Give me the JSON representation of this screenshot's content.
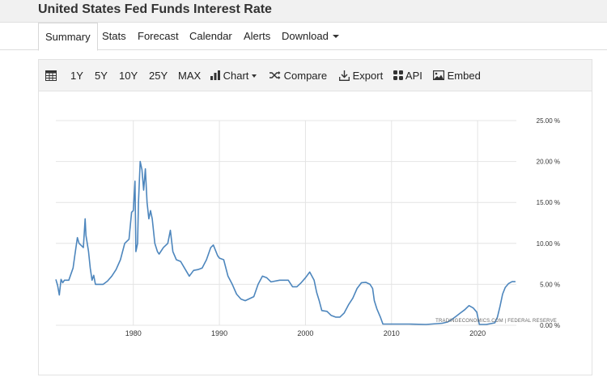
{
  "header": {
    "title": "United States Fed Funds Interest Rate"
  },
  "nav": {
    "tabs": [
      "Summary",
      "Stats",
      "Forecast",
      "Calendar",
      "Alerts",
      "Download"
    ],
    "active": "Summary"
  },
  "toolbar": {
    "ranges": [
      "1Y",
      "5Y",
      "10Y",
      "25Y",
      "MAX"
    ],
    "chart_label": "Chart",
    "compare_label": "Compare",
    "export_label": "Export",
    "api_label": "API",
    "embed_label": "Embed"
  },
  "colors": {
    "line": "#4d86bd",
    "grid": "#e4e4e4"
  },
  "chart_data": {
    "type": "line",
    "title": "",
    "xlabel": "",
    "ylabel": "",
    "xlim": [
      1971,
      2024.5
    ],
    "ylim": [
      0,
      25
    ],
    "y_ticks": [
      0,
      5,
      10,
      15,
      20,
      25
    ],
    "y_tick_labels": [
      "0.00 %",
      "5.00 %",
      "10.00 %",
      "15.00 %",
      "20.00 %",
      "25.00 %"
    ],
    "x_ticks": [
      1980,
      1990,
      2000,
      2010,
      2020
    ],
    "x_tick_labels": [
      "1980",
      "1990",
      "2000",
      "2010",
      "2020"
    ],
    "grid": true,
    "source": "TRADINGECONOMICS.COM  |  FEDERAL RESERVE",
    "series": [
      {
        "x": [
          1971.0,
          1971.2,
          1971.4,
          1971.6,
          1971.8,
          1972.0,
          1972.5,
          1973.0,
          1973.2,
          1973.5,
          1973.7,
          1973.9,
          1974.2,
          1974.4,
          1974.5,
          1974.8,
          1975.0,
          1975.2,
          1975.4,
          1975.6,
          1976.0,
          1976.5,
          1977.0,
          1977.5,
          1978.0,
          1978.5,
          1979.0,
          1979.5,
          1979.8,
          1980.0,
          1980.2,
          1980.3,
          1980.5,
          1980.6,
          1980.8,
          1981.0,
          1981.2,
          1981.4,
          1981.6,
          1981.8,
          1982.0,
          1982.2,
          1982.5,
          1982.8,
          1983.0,
          1983.5,
          1984.0,
          1984.3,
          1984.6,
          1985.0,
          1985.5,
          1986.0,
          1986.5,
          1987.0,
          1987.5,
          1988.0,
          1988.5,
          1989.0,
          1989.3,
          1989.8,
          1990.0,
          1990.5,
          1991.0,
          1991.5,
          1992.0,
          1992.5,
          1993.0,
          1994.0,
          1994.5,
          1995.0,
          1995.5,
          1996.0,
          1997.0,
          1998.0,
          1998.5,
          1999.0,
          1999.5,
          2000.0,
          2000.5,
          2001.0,
          2001.3,
          2001.6,
          2001.9,
          2002.5,
          2003.0,
          2003.5,
          2004.0,
          2004.5,
          2005.0,
          2005.5,
          2006.0,
          2006.5,
          2007.0,
          2007.5,
          2007.8,
          2008.0,
          2008.3,
          2008.7,
          2009.0,
          2010.0,
          2012.0,
          2014.0,
          2015.9,
          2016.5,
          2017.0,
          2017.5,
          2018.0,
          2018.5,
          2019.0,
          2019.5,
          2019.9,
          2020.2,
          2020.5,
          2021.0,
          2022.0,
          2022.3,
          2022.6,
          2022.9,
          2023.2,
          2023.6,
          2024.0,
          2024.4
        ],
        "y": [
          5.6,
          4.9,
          3.7,
          5.6,
          5.2,
          5.5,
          5.5,
          7.0,
          8.5,
          10.7,
          10.0,
          9.8,
          9.5,
          13.0,
          11.0,
          9.0,
          7.0,
          5.5,
          6.1,
          5.0,
          5.0,
          5.0,
          5.4,
          6.0,
          6.8,
          8.0,
          10.0,
          10.5,
          13.8,
          14.0,
          17.6,
          9.0,
          10.0,
          15.0,
          20.0,
          19.0,
          16.5,
          19.1,
          15.0,
          13.0,
          14.0,
          13.0,
          10.0,
          9.0,
          8.7,
          9.5,
          10.0,
          11.6,
          9.0,
          8.0,
          7.8,
          6.9,
          6.0,
          6.7,
          6.8,
          7.0,
          8.0,
          9.5,
          9.8,
          8.5,
          8.2,
          8.0,
          6.0,
          5.0,
          3.8,
          3.2,
          3.0,
          3.5,
          5.0,
          6.0,
          5.8,
          5.3,
          5.5,
          5.5,
          4.7,
          4.7,
          5.2,
          5.8,
          6.5,
          5.5,
          4.0,
          3.0,
          1.8,
          1.7,
          1.2,
          1.0,
          1.0,
          1.5,
          2.5,
          3.3,
          4.5,
          5.2,
          5.25,
          5.0,
          4.5,
          3.0,
          2.0,
          1.0,
          0.15,
          0.15,
          0.15,
          0.1,
          0.25,
          0.4,
          0.7,
          1.1,
          1.5,
          1.9,
          2.4,
          2.1,
          1.6,
          0.1,
          0.1,
          0.1,
          0.3,
          1.0,
          2.3,
          3.8,
          4.6,
          5.1,
          5.33,
          5.33
        ]
      }
    ]
  }
}
